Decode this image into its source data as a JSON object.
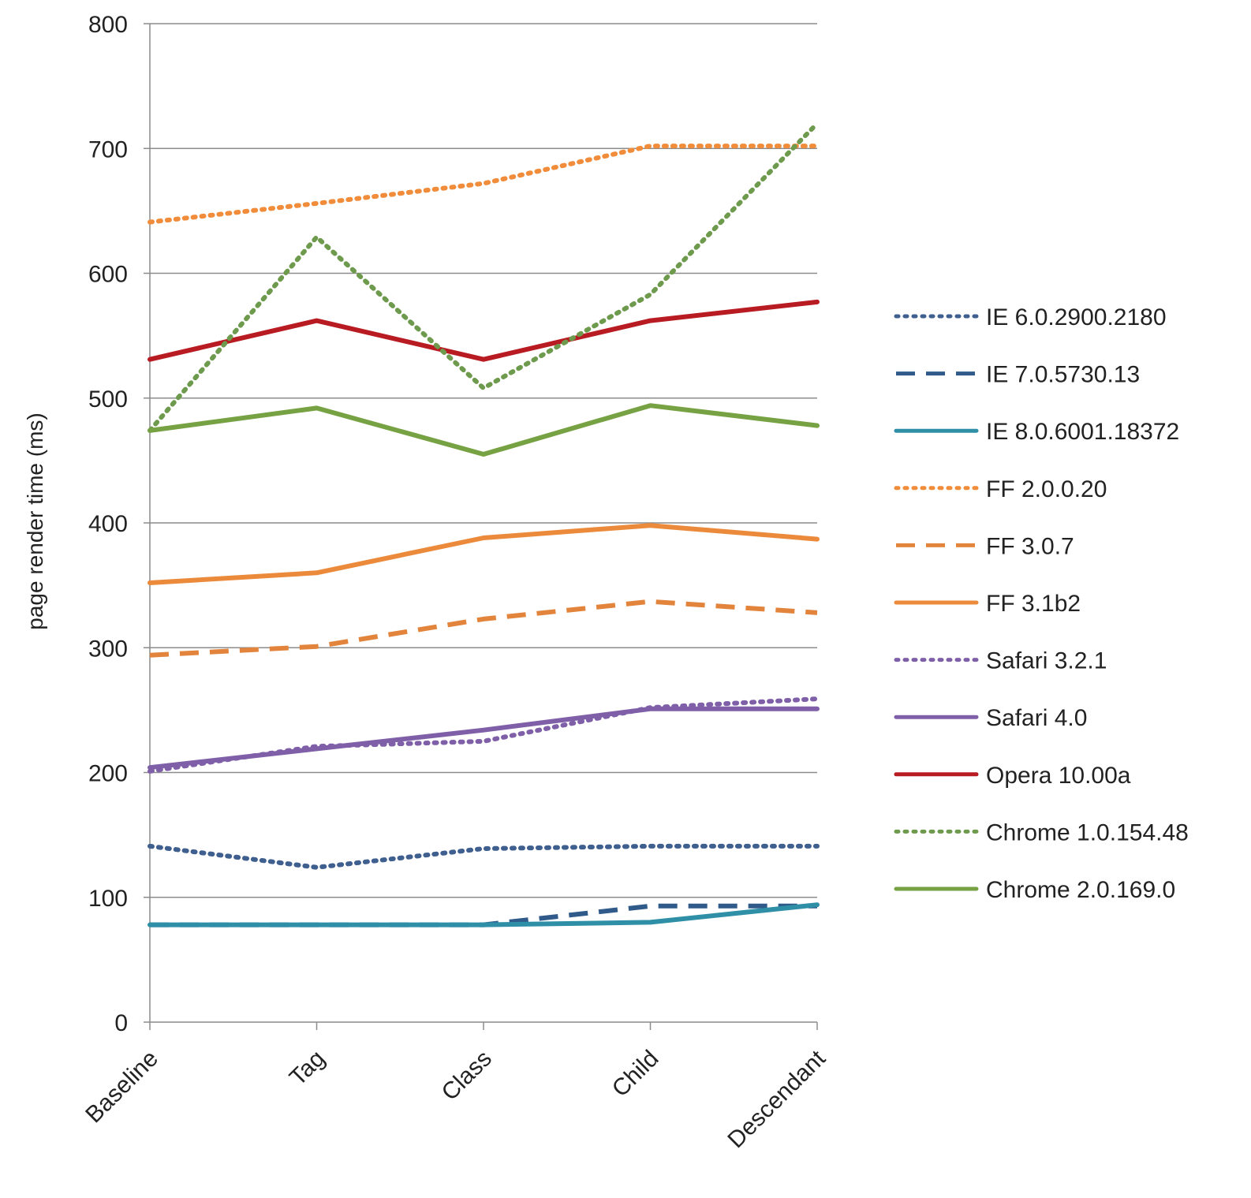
{
  "chart_data": {
    "type": "line",
    "title": "",
    "xlabel": "",
    "ylabel": "page render time (ms)",
    "categories": [
      "Baseline",
      "Tag",
      "Class",
      "Child",
      "Descendant"
    ],
    "ylim": [
      0,
      800
    ],
    "yticks": [
      "0",
      "100",
      "200",
      "300",
      "400",
      "500",
      "600",
      "700",
      "800"
    ],
    "grid": "horizontal",
    "legend_position": "right",
    "series": [
      {
        "name": "IE 6.0.2900.2180",
        "values": [
          141,
          124,
          139,
          141,
          141
        ],
        "color": "#3f5f8f",
        "dash": "dotted"
      },
      {
        "name": "IE 7.0.5730.13",
        "values": [
          78,
          78,
          78,
          93,
          93
        ],
        "color": "#2f5a8a",
        "dash": "dashed"
      },
      {
        "name": "IE 8.0.6001.18372",
        "values": [
          78,
          78,
          78,
          80,
          94
        ],
        "color": "#2e8fa6",
        "dash": "solid"
      },
      {
        "name": "FF 2.0.0.20",
        "values": [
          641,
          656,
          672,
          702,
          702
        ],
        "color": "#f08c3a",
        "dash": "dotted"
      },
      {
        "name": "FF 3.0.7",
        "values": [
          294,
          301,
          323,
          337,
          328
        ],
        "color": "#e2843c",
        "dash": "dashed"
      },
      {
        "name": "FF 3.1b2",
        "values": [
          352,
          360,
          388,
          398,
          387
        ],
        "color": "#ec8a3b",
        "dash": "solid"
      },
      {
        "name": "Safari 3.2.1",
        "values": [
          201,
          221,
          225,
          252,
          259
        ],
        "color": "#7f5fa8",
        "dash": "dotted"
      },
      {
        "name": "Safari 4.0",
        "values": [
          204,
          219,
          234,
          251,
          251
        ],
        "color": "#7f5fa8",
        "dash": "solid"
      },
      {
        "name": "Opera 10.00a",
        "values": [
          531,
          562,
          531,
          562,
          577
        ],
        "color": "#b81b22",
        "dash": "solid"
      },
      {
        "name": "Chrome 1.0.154.48",
        "values": [
          474,
          629,
          508,
          583,
          720
        ],
        "color": "#6e9a4d",
        "dash": "dotted"
      },
      {
        "name": "Chrome 2.0.169.0",
        "values": [
          474,
          492,
          455,
          494,
          478
        ],
        "color": "#77a244",
        "dash": "solid"
      }
    ]
  }
}
